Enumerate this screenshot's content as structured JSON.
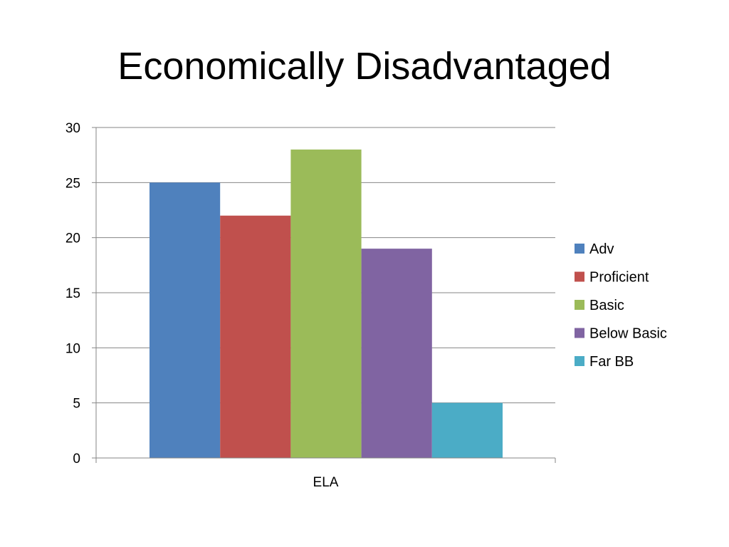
{
  "slide": {
    "title": "Economically Disadvantaged"
  },
  "chart_data": {
    "type": "bar",
    "title": "Economically Disadvantaged",
    "categories": [
      "ELA"
    ],
    "series": [
      {
        "name": "Adv",
        "values": [
          25
        ],
        "color": "#4F81BD"
      },
      {
        "name": "Proficient",
        "values": [
          22
        ],
        "color": "#C0504D"
      },
      {
        "name": "Basic",
        "values": [
          28
        ],
        "color": "#9BBB59"
      },
      {
        "name": "Below Basic",
        "values": [
          19
        ],
        "color": "#8064A2"
      },
      {
        "name": "Far BB",
        "values": [
          5
        ],
        "color": "#4BACC6"
      }
    ],
    "xlabel": "",
    "ylabel": "",
    "ylim": [
      0,
      30
    ],
    "yticks": [
      0,
      5,
      10,
      15,
      20,
      25,
      30
    ],
    "grid": true,
    "legend": "right"
  }
}
